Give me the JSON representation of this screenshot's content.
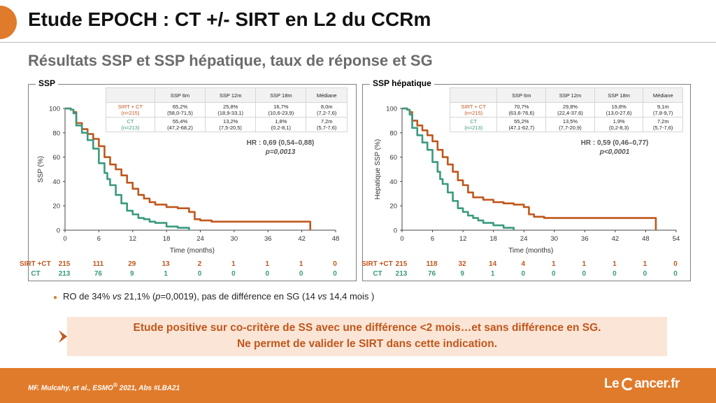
{
  "title": "Etude EPOCH : CT +/- SIRT en L2 du CCRm",
  "subtitle": "Résultats SSP et SSP hépatique, taux de réponse et SG",
  "colors": {
    "accent": "#e07b2b",
    "sirt": "#c0571c",
    "ct": "#3a9a7f",
    "conclusion_bg": "#fbe5d6"
  },
  "chart_data": [
    {
      "type": "line",
      "title": "SSP",
      "ylabel": "SSP (%)",
      "xlabel": "Time (months)",
      "xlim": [
        0,
        48
      ],
      "ylim": [
        0,
        100
      ],
      "xticks": [
        "0",
        "6",
        "12",
        "18",
        "24",
        "30",
        "36",
        "42",
        "48"
      ],
      "yticks": [
        "0",
        "20",
        "40",
        "60",
        "80",
        "100"
      ],
      "series": [
        {
          "name": "SIRT + CT",
          "x": [
            0,
            1,
            1.5,
            2,
            3,
            4,
            5,
            6,
            7,
            8,
            9,
            10,
            11,
            12,
            13,
            14,
            15,
            16,
            18,
            20,
            22,
            23,
            24,
            26,
            28,
            30,
            36,
            42,
            43.5,
            43.5
          ],
          "y": [
            100,
            99,
            97,
            88,
            83,
            79,
            75,
            69,
            60,
            54,
            50,
            45,
            39,
            34,
            29,
            26,
            23,
            21,
            19,
            18,
            15,
            9,
            8,
            7,
            7,
            7,
            7,
            7,
            7,
            0
          ]
        },
        {
          "name": "CT",
          "x": [
            0,
            1,
            1.5,
            2,
            3,
            4,
            5,
            6,
            7,
            7.5,
            8,
            9,
            10,
            11,
            12,
            13,
            14,
            15,
            16,
            18,
            20,
            22,
            22
          ],
          "y": [
            100,
            99,
            96,
            86,
            80,
            74,
            67,
            55,
            47,
            42,
            37,
            29,
            22,
            16,
            13,
            10,
            9,
            7,
            6,
            3,
            2,
            2,
            0
          ]
        }
      ],
      "table": {
        "headers": [
          "",
          "SSP 6m",
          "SSP 12m",
          "SSP 18m",
          "Médiane"
        ],
        "rows": [
          {
            "arm": "SIRT + CT",
            "n": "(n=215)",
            "cells": [
              [
                "65,2%",
                "(58,0-71,5)"
              ],
              [
                "25,8%",
                "(18,9-33,1)"
              ],
              [
                "16,7%",
                "(10,6-23,9)"
              ],
              [
                "8,0m",
                "(7,2-7,6)"
              ]
            ]
          },
          {
            "arm": "CT",
            "n": "(n=213)",
            "cells": [
              [
                "55,4%",
                "(47,2-68,2)"
              ],
              [
                "13,2%",
                "(7,5-20,5)"
              ],
              [
                "1,8%",
                "(0,2-8,1)"
              ],
              [
                "7,2m",
                "(5,7-7,6)"
              ]
            ]
          }
        ]
      },
      "hr_line": "HR : 0,69 (0,54–0,88)",
      "p_line": "p=0,0013",
      "risk": {
        "sirt_label": "SIRT +CT",
        "ct_label": "CT",
        "sirt": [
          "215",
          "111",
          "29",
          "13",
          "2",
          "1",
          "1",
          "1",
          "0"
        ],
        "ct": [
          "213",
          "76",
          "9",
          "1",
          "0",
          "0",
          "0",
          "0",
          "0"
        ]
      }
    },
    {
      "type": "line",
      "title": "SSP hépatique",
      "ylabel": "Hepatique SSP (%)",
      "xlabel": "Time (months)",
      "xlim": [
        0,
        54
      ],
      "ylim": [
        0,
        100
      ],
      "xticks": [
        "0",
        "6",
        "12",
        "18",
        "24",
        "30",
        "36",
        "42",
        "48",
        "54"
      ],
      "yticks": [
        "0",
        "20",
        "40",
        "60",
        "80",
        "100"
      ],
      "series": [
        {
          "name": "SIRT + CT",
          "x": [
            0,
            1,
            1.5,
            2,
            3,
            4,
            5,
            6,
            7,
            8,
            9,
            10,
            11,
            12,
            13,
            14,
            16,
            18,
            20,
            22,
            24,
            25,
            26,
            28,
            30,
            36,
            42,
            48,
            50,
            50
          ],
          "y": [
            100,
            99,
            97,
            90,
            86,
            82,
            78,
            73,
            66,
            60,
            54,
            48,
            41,
            37,
            31,
            27,
            25,
            23,
            22,
            21,
            19,
            13,
            11,
            10,
            10,
            10,
            10,
            10,
            10,
            0
          ]
        },
        {
          "name": "CT",
          "x": [
            0,
            1,
            1.5,
            2,
            3,
            4,
            5,
            6,
            7,
            7.5,
            8,
            9,
            10,
            11,
            12,
            13,
            14,
            15,
            16,
            18,
            20,
            22,
            22
          ],
          "y": [
            100,
            99,
            95,
            84,
            78,
            72,
            66,
            56,
            48,
            42,
            38,
            31,
            24,
            18,
            15,
            12,
            10,
            8,
            6,
            4,
            2,
            2,
            0
          ]
        }
      ],
      "table": {
        "headers": [
          "",
          "SSP 6m",
          "SSP 12m",
          "SSP 18m",
          "Médiane"
        ],
        "rows": [
          {
            "arm": "SIRT + CT",
            "n": "(n=215)",
            "cells": [
              [
                "70,7%",
                "(63,6-76,6)"
              ],
              [
                "29,8%",
                "(22,4-37,6)"
              ],
              [
                "19,8%",
                "(13,0-27,6)"
              ],
              [
                "9,1m",
                "(7,8-9,7)"
              ]
            ]
          },
          {
            "arm": "CT",
            "n": "(n=213)",
            "cells": [
              [
                "55,2%",
                "(47,1-62,7)"
              ],
              [
                "13,5%",
                "(7,7-20,9)"
              ],
              [
                "1,9%",
                "(0,2-8,3)"
              ],
              [
                "7,2m",
                "(5,7-7,6)"
              ]
            ]
          }
        ]
      },
      "hr_line": "HR : 0,59 (0,46–0,77)",
      "p_line": "p<0,0001",
      "risk": {
        "sirt_label": "SIRT +CT",
        "ct_label": "CT",
        "sirt": [
          "215",
          "118",
          "32",
          "14",
          "4",
          "1",
          "1",
          "1",
          "1",
          "0"
        ],
        "ct": [
          "213",
          "76",
          "9",
          "1",
          "0",
          "0",
          "0",
          "0",
          "0",
          "0"
        ]
      }
    }
  ],
  "bullet": {
    "pre": "RO de 34% ",
    "vs1": "vs",
    "mid": " 21,1% (",
    "p": "p",
    "post": "=0,0019), pas de différence en SG (14 ",
    "vs2": "vs",
    "end": " 14,4 mois )"
  },
  "conclusion": {
    "line1": "Etude positive sur co-critère de SS avec une différence <2 mois…et sans différence en SG.",
    "line2": "Ne permet de valider le SIRT dans cette indication."
  },
  "footer": {
    "citation": "MF. Mulcahy, et al., ESMO",
    "sup": "®",
    "citation_end": " 2021, Abs #LBA21",
    "logo_pre": "Le",
    "logo_post": "ancer.fr"
  }
}
